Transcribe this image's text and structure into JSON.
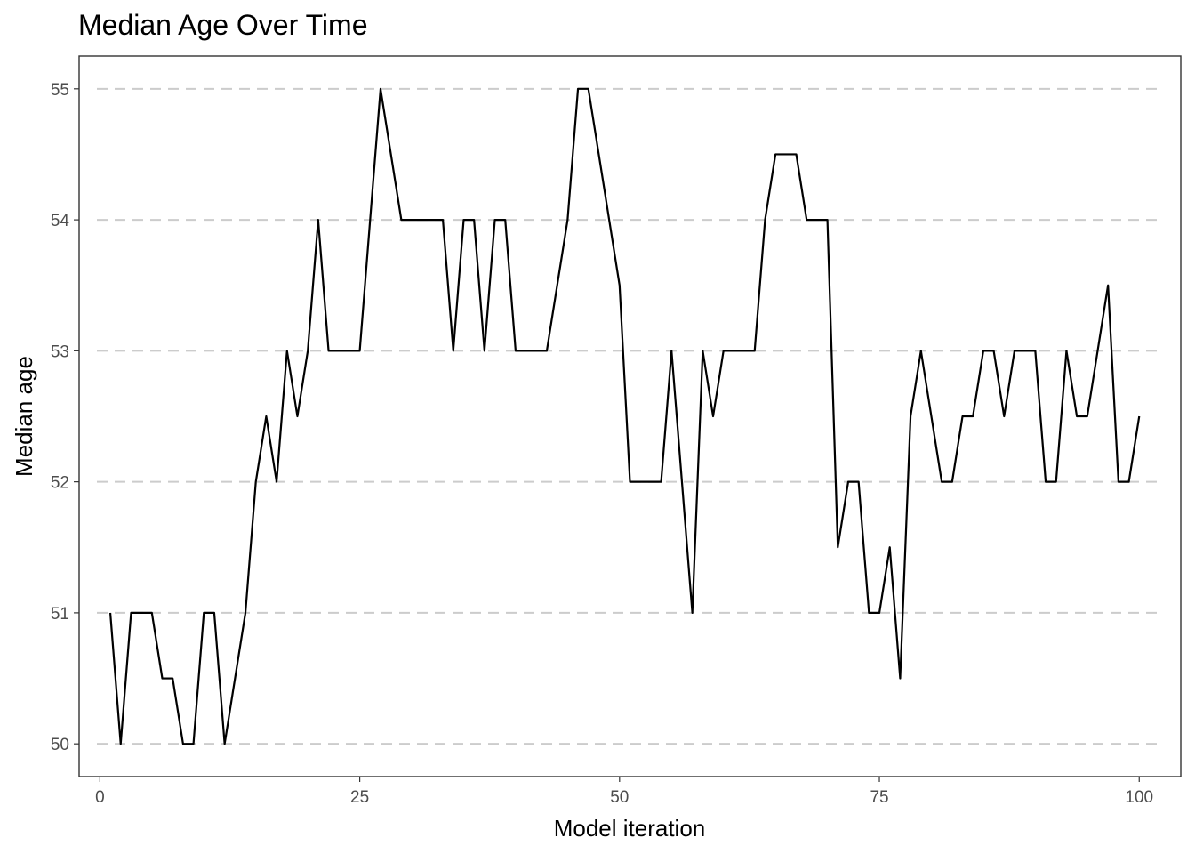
{
  "chart_data": {
    "type": "line",
    "title": "Median Age Over Time",
    "xlabel": "Model iteration",
    "ylabel": "Median age",
    "xlim": [
      -2,
      104
    ],
    "ylim": [
      49.75,
      55.25
    ],
    "x_ticks": [
      0,
      25,
      50,
      75,
      100
    ],
    "x_tick_labels": [
      "0",
      "25",
      "50",
      "75",
      "100"
    ],
    "y_ticks": [
      50,
      51,
      52,
      53,
      54,
      55
    ],
    "y_tick_labels": [
      "50",
      "51",
      "52",
      "53",
      "54",
      "55"
    ],
    "grid": "horizontal dashed",
    "legend": "none",
    "line_color": "#000000",
    "grid_color": "#cccccc",
    "series": [
      {
        "x": [
          1,
          2,
          3,
          4,
          5,
          6,
          7,
          8,
          9,
          10,
          11,
          12,
          13,
          14,
          15,
          16,
          17,
          18,
          19,
          20,
          21,
          22,
          23,
          24,
          25,
          26,
          27,
          28,
          29,
          30,
          31,
          32,
          33,
          34,
          35,
          36,
          37,
          38,
          39,
          40,
          41,
          42,
          43,
          44,
          45,
          46,
          47,
          48,
          49,
          50,
          51,
          52,
          53,
          54,
          55,
          56,
          57,
          58,
          59,
          60,
          61,
          62,
          63,
          64,
          65,
          66,
          67,
          68,
          69,
          70,
          71,
          72,
          73,
          74,
          75,
          76,
          77,
          78,
          79,
          80,
          81,
          82,
          83,
          84,
          85,
          86,
          87,
          88,
          89,
          90,
          91,
          92,
          93,
          94,
          95,
          96,
          97,
          98,
          99,
          100
        ],
        "values": [
          51,
          50,
          51,
          51,
          51,
          50.5,
          50.5,
          50,
          50,
          51,
          51,
          50,
          50.5,
          51,
          52,
          52.5,
          52,
          53,
          52.5,
          53,
          54,
          53,
          53,
          53,
          53,
          54,
          55,
          54.5,
          54,
          54,
          54,
          54,
          54,
          53,
          54,
          54,
          53,
          54,
          54,
          53,
          53,
          53,
          53,
          53.5,
          54,
          55,
          55,
          54.5,
          54,
          53.5,
          52,
          52,
          52,
          52,
          53,
          52,
          51,
          53,
          52.5,
          53,
          53,
          53,
          53,
          54,
          54.5,
          54.5,
          54.5,
          54,
          54,
          54,
          51.5,
          52,
          52,
          51,
          51,
          51.5,
          50.5,
          52.5,
          53,
          52.5,
          52,
          52,
          52.5,
          52.5,
          53,
          53,
          52.5,
          53,
          53,
          53,
          52,
          52,
          53,
          52.5,
          52.5,
          53,
          53.5,
          52,
          52,
          52.5
        ]
      }
    ]
  }
}
